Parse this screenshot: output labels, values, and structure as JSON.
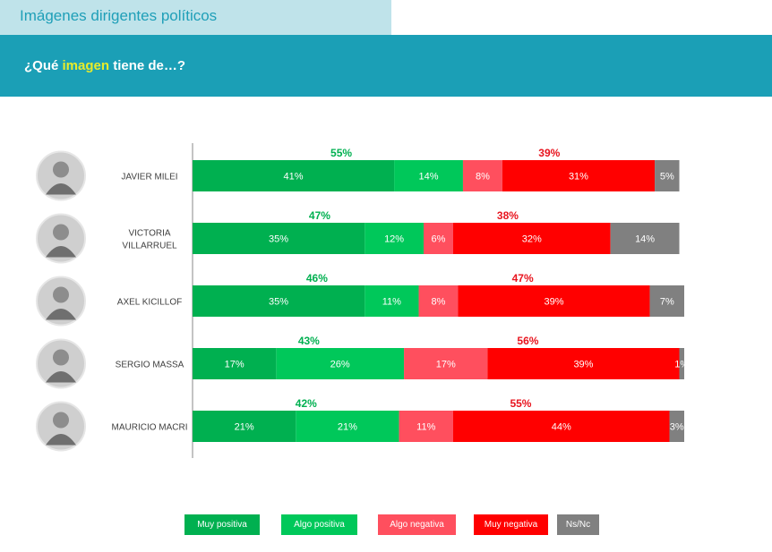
{
  "header": {
    "tab_title": "Imágenes dirigentes políticos",
    "question_pre": "¿Qué ",
    "question_highlight": "imagen",
    "question_post": " tiene de…?"
  },
  "colors": {
    "muy_positiva": "#00b050",
    "algo_positiva": "#00c85a",
    "algo_negativa": "#ff4f5e",
    "muy_negativa": "#ff0000",
    "ns_nc": "#808080",
    "positive_total_text": "#00b050",
    "negative_total_text": "#e8141e"
  },
  "chart_data": {
    "type": "bar",
    "orientation": "horizontal",
    "stacked": true,
    "categories": [
      "JAVIER MILEI",
      "VICTORIA VILLARRUEL",
      "AXEL KICILLOF",
      "SERGIO MASSA",
      "MAURICIO MACRI"
    ],
    "category_lines": [
      [
        "JAVIER MILEI"
      ],
      [
        "VICTORIA",
        "VILLARRUEL"
      ],
      [
        "AXEL KICILLOF"
      ],
      [
        "SERGIO MASSA"
      ],
      [
        "MAURICIO MACRI"
      ]
    ],
    "series": [
      {
        "name": "Muy positiva",
        "values": [
          41,
          35,
          35,
          17,
          21
        ]
      },
      {
        "name": "Algo positiva",
        "values": [
          14,
          12,
          11,
          26,
          21
        ]
      },
      {
        "name": "Algo negativa",
        "values": [
          8,
          6,
          8,
          17,
          11
        ]
      },
      {
        "name": "Muy negativa",
        "values": [
          31,
          32,
          39,
          39,
          44
        ]
      },
      {
        "name": "Ns/Nc",
        "values": [
          5,
          14,
          7,
          1,
          3
        ]
      }
    ],
    "positive_totals": [
      55,
      47,
      46,
      43,
      42
    ],
    "negative_totals": [
      39,
      38,
      47,
      56,
      55
    ],
    "value_unit": "%",
    "legend_position": "bottom"
  }
}
